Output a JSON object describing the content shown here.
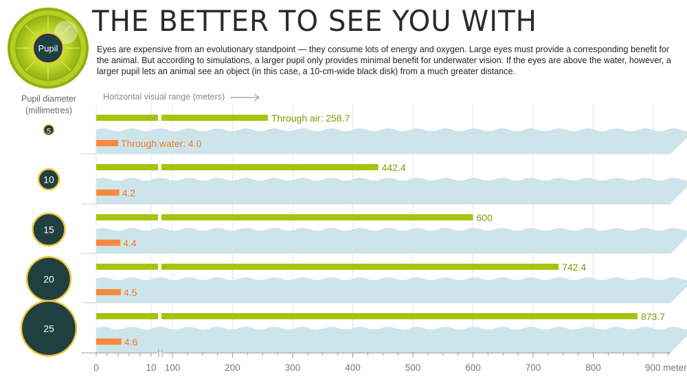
{
  "header": {
    "title": "THE BETTER TO SEE YOU WITH",
    "description": "Eyes are expensive from an evolutionary standpoint — they consume lots of energy and oxygen. Large eyes must provide a corresponding benefit for the animal. But according to simulations, a larger pupil only provides minimal benefit for underwater vision. If the eyes are above the water, however, a larger pupil lets an animal see an object (in this case, a 10-cm-wide black disk) from a much greater distance.",
    "eye_label": "Pupil"
  },
  "colors": {
    "air": "#a4c40f",
    "water": "#f78a3d",
    "water_band": "#cde4ea",
    "pupil_fill": "#1f3f40",
    "pupil_ring": "#f3c53a"
  },
  "chart_data": {
    "type": "bar",
    "ylabel": "Pupil diameter\n(millimetres)",
    "xlabel": "Horizontal visual range (meters)",
    "x_scale": "broken",
    "x_segments": [
      [
        0,
        10
      ],
      [
        100,
        900
      ]
    ],
    "x_ticks": [
      "0",
      "10",
      "100",
      "200",
      "300",
      "400",
      "500",
      "600",
      "700",
      "800",
      "900 meters"
    ],
    "categories": [
      "5",
      "10",
      "15",
      "20",
      "25"
    ],
    "series": [
      {
        "name": "Through air",
        "values": [
          258.7,
          442.4,
          600,
          742.4,
          873.7
        ]
      },
      {
        "name": "Through water",
        "values": [
          4.0,
          4.2,
          4.4,
          4.5,
          4.6
        ]
      }
    ],
    "value_labels": {
      "air": [
        "Through air: 258.7",
        "442.4",
        "600",
        "742.4",
        "873.7"
      ],
      "water": [
        "Through water: 4.0",
        "4.2",
        "4.4",
        "4.5",
        "4.6"
      ]
    }
  }
}
